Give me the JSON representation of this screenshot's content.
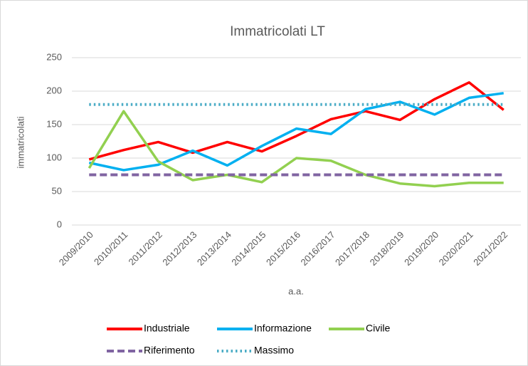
{
  "chart_data": {
    "type": "line",
    "title": "Immatricolati LT",
    "x_label": "a.a.",
    "y_label": "immatricolati",
    "categories": [
      "2009/2010",
      "2010/2011",
      "2011/2012",
      "2012/2013",
      "2013/2014",
      "2014/2015",
      "2015/2016",
      "2016/2017",
      "2017/2018",
      "2018/2019",
      "2019/2020",
      "2020/2021",
      "2021/2022"
    ],
    "series": [
      {
        "name": "Industriale",
        "color": "#ff0000",
        "style": "solid",
        "values": [
          98,
          112,
          124,
          108,
          124,
          110,
          133,
          158,
          170,
          157,
          188,
          213,
          172
        ]
      },
      {
        "name": "Informazione",
        "color": "#00b0f0",
        "style": "solid",
        "values": [
          93,
          82,
          90,
          111,
          89,
          118,
          144,
          136,
          173,
          184,
          165,
          190,
          197
        ]
      },
      {
        "name": "Civile",
        "color": "#92d050",
        "style": "solid",
        "values": [
          85,
          170,
          95,
          67,
          75,
          64,
          100,
          96,
          75,
          62,
          58,
          63,
          63
        ]
      },
      {
        "name": "Riferimento",
        "color": "#8064a2",
        "style": "dashed",
        "values": [
          75,
          75,
          75,
          75,
          75,
          75,
          75,
          75,
          75,
          75,
          75,
          75,
          75
        ]
      },
      {
        "name": "Massimo",
        "color": "#4bacc6",
        "style": "dotted",
        "values": [
          180,
          180,
          180,
          180,
          180,
          180,
          180,
          180,
          180,
          180,
          180,
          180,
          180
        ]
      }
    ],
    "ylim": [
      0,
      250
    ],
    "yticks": [
      0,
      50,
      100,
      150,
      200,
      250
    ],
    "grid": true
  }
}
